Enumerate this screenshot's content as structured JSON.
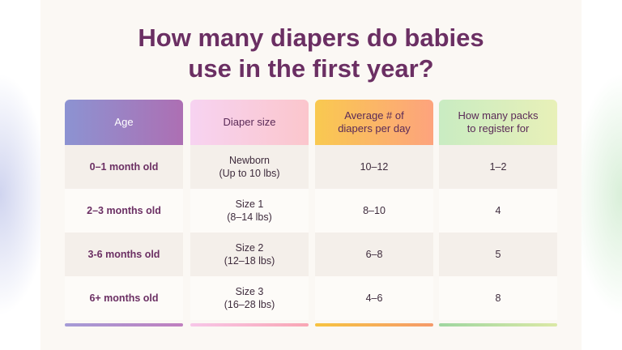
{
  "title": {
    "line1": "How many diapers do babies",
    "line2": "use in the first year?"
  },
  "table": {
    "headers": {
      "age": "Age",
      "size": "Diaper size",
      "per_day_line1": "Average # of",
      "per_day_line2": "diapers per day",
      "packs_line1": "How many packs",
      "packs_line2": "to register for"
    },
    "rows": [
      {
        "age": "0–1 month old",
        "size_line1": "Newborn",
        "size_line2": "(Up to 10 lbs)",
        "per_day": "10–12",
        "packs": "1–2"
      },
      {
        "age": "2–3 months old",
        "size_line1": "Size 1",
        "size_line2": "(8–14 lbs)",
        "per_day": "8–10",
        "packs": "4"
      },
      {
        "age": "3-6 months old",
        "size_line1": "Size 2",
        "size_line2": "(12–18 lbs)",
        "per_day": "6–8",
        "packs": "5"
      },
      {
        "age": "6+ months old",
        "size_line1": "Size 3",
        "size_line2": "(16–28 lbs)",
        "per_day": "4–6",
        "packs": "8"
      }
    ]
  },
  "colors": {
    "title": "#6b2f63",
    "age_header_start": "#8c93d2",
    "age_header_end": "#ad6fb3",
    "size_header": "#f7d3f1",
    "per_day_header": "#f9c950",
    "packs_header": "#c9ecc2"
  }
}
